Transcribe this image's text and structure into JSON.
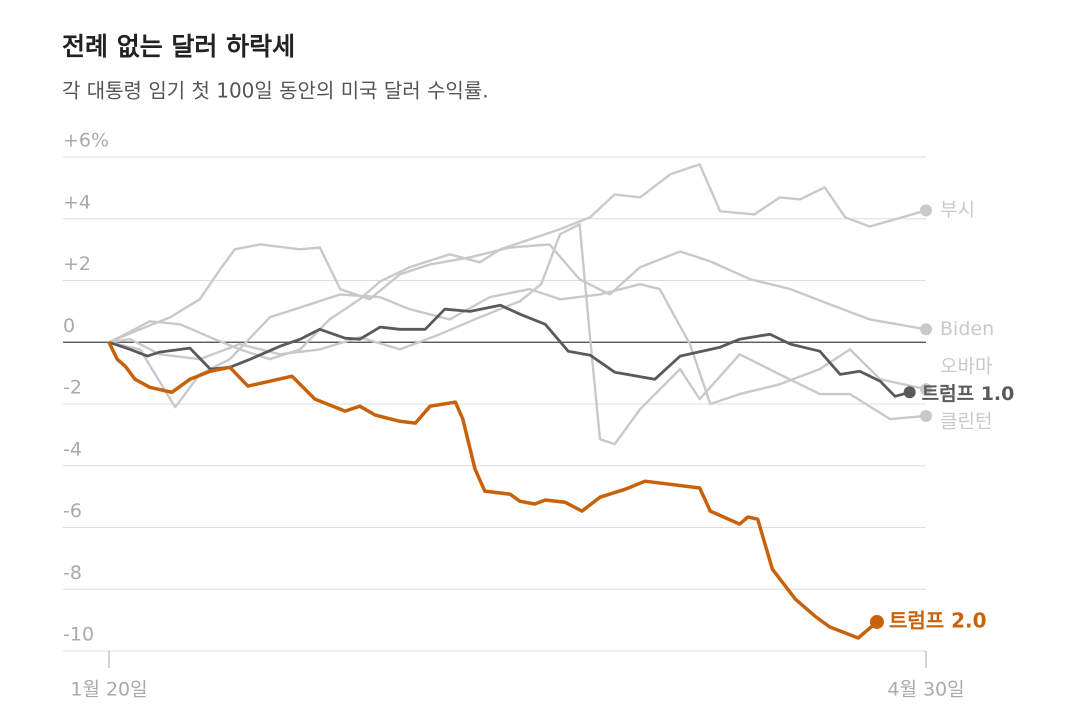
{
  "chart_data": {
    "type": "line",
    "title": "전례 없는 달러 하락세",
    "subtitle": "각 대통령 임기 첫 100일 동안의 미국 달러 수익률.",
    "xlim": [
      0,
      100
    ],
    "xticks": [
      {
        "value": 0,
        "label": "1월 20일"
      },
      {
        "value": 100,
        "label": "4월 30일"
      }
    ],
    "ylim": [
      -10,
      6
    ],
    "yticks": [
      {
        "value": 6,
        "label": "+6%"
      },
      {
        "value": 4,
        "label": "+4"
      },
      {
        "value": 2,
        "label": "+2"
      },
      0,
      -2,
      -4,
      -6,
      -8,
      -10
    ],
    "grid": true,
    "series": [
      {
        "name": "부시",
        "color": "#c9c9c9",
        "x": [
          0,
          2,
          5,
          8.7,
          12.4,
          16,
          19.7,
          23.4,
          27,
          30.7,
          33.2,
          36.8,
          41.7,
          45.4,
          47.9,
          51.5,
          55.2,
          58.9,
          61.9,
          65,
          68.7,
          72.3,
          74.8,
          79,
          82.1,
          84.6,
          87.6,
          90.1,
          93.1,
          96.2,
          100
        ],
        "values": [
          0,
          0.26,
          0.68,
          0.58,
          0.16,
          -0.23,
          -0.55,
          -0.23,
          0.74,
          1.39,
          1.97,
          2.43,
          2.85,
          2.59,
          3.01,
          3.33,
          3.66,
          4.05,
          4.79,
          4.69,
          5.44,
          5.76,
          4.24,
          4.14,
          4.69,
          4.63,
          5.02,
          4.05,
          3.75,
          3.98,
          4.27
        ]
      },
      {
        "name": "Biden",
        "color": "#c9c9c9",
        "x": [
          0,
          3.8,
          7.5,
          11.1,
          13.6,
          15.4,
          18.5,
          23.4,
          25.8,
          28.3,
          31.9,
          35.6,
          39.3,
          44.2,
          49.1,
          53.9,
          57.6,
          61.3,
          65,
          69.9,
          73.6,
          78.5,
          83.4,
          88.2,
          93.1,
          100
        ],
        "values": [
          0,
          0.42,
          0.81,
          1.39,
          2.36,
          3.01,
          3.17,
          3.01,
          3.07,
          1.72,
          1.39,
          2.2,
          2.52,
          2.75,
          3.07,
          3.17,
          2.04,
          1.55,
          2.43,
          2.94,
          2.62,
          2.04,
          1.72,
          1.23,
          0.74,
          0.42
        ]
      },
      {
        "name": "오바마",
        "color": "#c9c9c9",
        "x": [
          0,
          3.8,
          8.1,
          11.1,
          14.8,
          19.7,
          24.6,
          28.3,
          33.2,
          36.8,
          41.7,
          46.6,
          51.5,
          55.2,
          60.1,
          65,
          67.4,
          71.1,
          73.6,
          77.2,
          82.1,
          87,
          90.7,
          94.4,
          100
        ],
        "values": [
          0,
          -0.23,
          -2.1,
          -1.04,
          -0.55,
          0.81,
          1.23,
          1.55,
          1.46,
          1.07,
          0.74,
          1.46,
          1.72,
          1.39,
          1.55,
          1.88,
          1.72,
          -0.06,
          -2.0,
          -1.68,
          -1.36,
          -0.87,
          -0.23,
          -1.2,
          -1.52
        ]
      },
      {
        "name": "클린턴",
        "color": "#c9c9c9",
        "x": [
          0,
          2.6,
          6.2,
          11.1,
          16,
          20.9,
          25.8,
          30.7,
          35.6,
          40.5,
          45.4,
          50.3,
          52.9,
          55.2,
          57.6,
          58.9,
          60.1,
          61.9,
          65,
          69.9,
          72.3,
          77.2,
          82.1,
          87,
          90.7,
          95.6,
          100
        ],
        "values": [
          0,
          0.1,
          -0.39,
          -0.55,
          -0.06,
          -0.39,
          -0.23,
          0.16,
          -0.23,
          0.26,
          0.81,
          1.33,
          1.88,
          3.5,
          3.82,
          0.1,
          -3.14,
          -3.3,
          -2.17,
          -0.87,
          -1.84,
          -0.39,
          -1.04,
          -1.68,
          -1.68,
          -2.49,
          -2.39
        ]
      },
      {
        "name": "트럼프 1.0",
        "color": "#5a5a5a",
        "x": [
          0,
          2.6,
          4.7,
          6.2,
          9.9,
          12.4,
          14.8,
          17.3,
          20.9,
          23.4,
          25.8,
          28.9,
          30.7,
          33.2,
          35.6,
          38.7,
          41.1,
          44.2,
          47.9,
          50.3,
          53.4,
          56.2,
          58.9,
          61.9,
          66.8,
          69.9,
          74.8,
          77.2,
          80.9,
          83.4,
          87,
          89.5,
          91.9,
          94.4,
          96.2,
          98
        ],
        "values": [
          0,
          -0.23,
          -0.45,
          -0.32,
          -0.19,
          -0.87,
          -0.81,
          -0.55,
          -0.13,
          0.1,
          0.42,
          0.13,
          0.1,
          0.49,
          0.42,
          0.42,
          1.07,
          1.0,
          1.2,
          0.91,
          0.58,
          -0.29,
          -0.42,
          -0.97,
          -1.2,
          -0.45,
          -0.16,
          0.1,
          0.26,
          -0.06,
          -0.29,
          -1.04,
          -0.94,
          -1.26,
          -1.75,
          -1.62
        ]
      },
      {
        "name": "트럼프 2.0",
        "color": "#c8620a",
        "x": [
          0,
          1,
          2,
          3.2,
          5,
          7.7,
          9.9,
          12.4,
          14.8,
          17,
          19.7,
          22.4,
          25.2,
          28.9,
          30.7,
          32.6,
          35.6,
          37.5,
          39.3,
          42.4,
          43.3,
          44.8,
          46,
          49.1,
          50.3,
          52.1,
          53.4,
          55.8,
          57.9,
          60.1,
          63.2,
          65.6,
          68.7,
          72.3,
          73.6,
          77.2,
          78.2,
          79.4,
          81.2,
          84,
          86.4,
          88.2,
          91.7,
          94
        ],
        "values": [
          0,
          -0.55,
          -0.78,
          -1.2,
          -1.46,
          -1.62,
          -1.2,
          -0.94,
          -0.81,
          -1.42,
          -1.26,
          -1.1,
          -1.84,
          -2.23,
          -2.07,
          -2.36,
          -2.56,
          -2.62,
          -2.07,
          -1.94,
          -2.49,
          -4.11,
          -4.82,
          -4.92,
          -5.15,
          -5.24,
          -5.11,
          -5.18,
          -5.47,
          -5.02,
          -4.76,
          -4.5,
          -4.6,
          -4.72,
          -5.47,
          -5.89,
          -5.66,
          -5.73,
          -7.35,
          -8.32,
          -8.87,
          -9.22,
          -9.58,
          -9.06
        ]
      }
    ]
  }
}
